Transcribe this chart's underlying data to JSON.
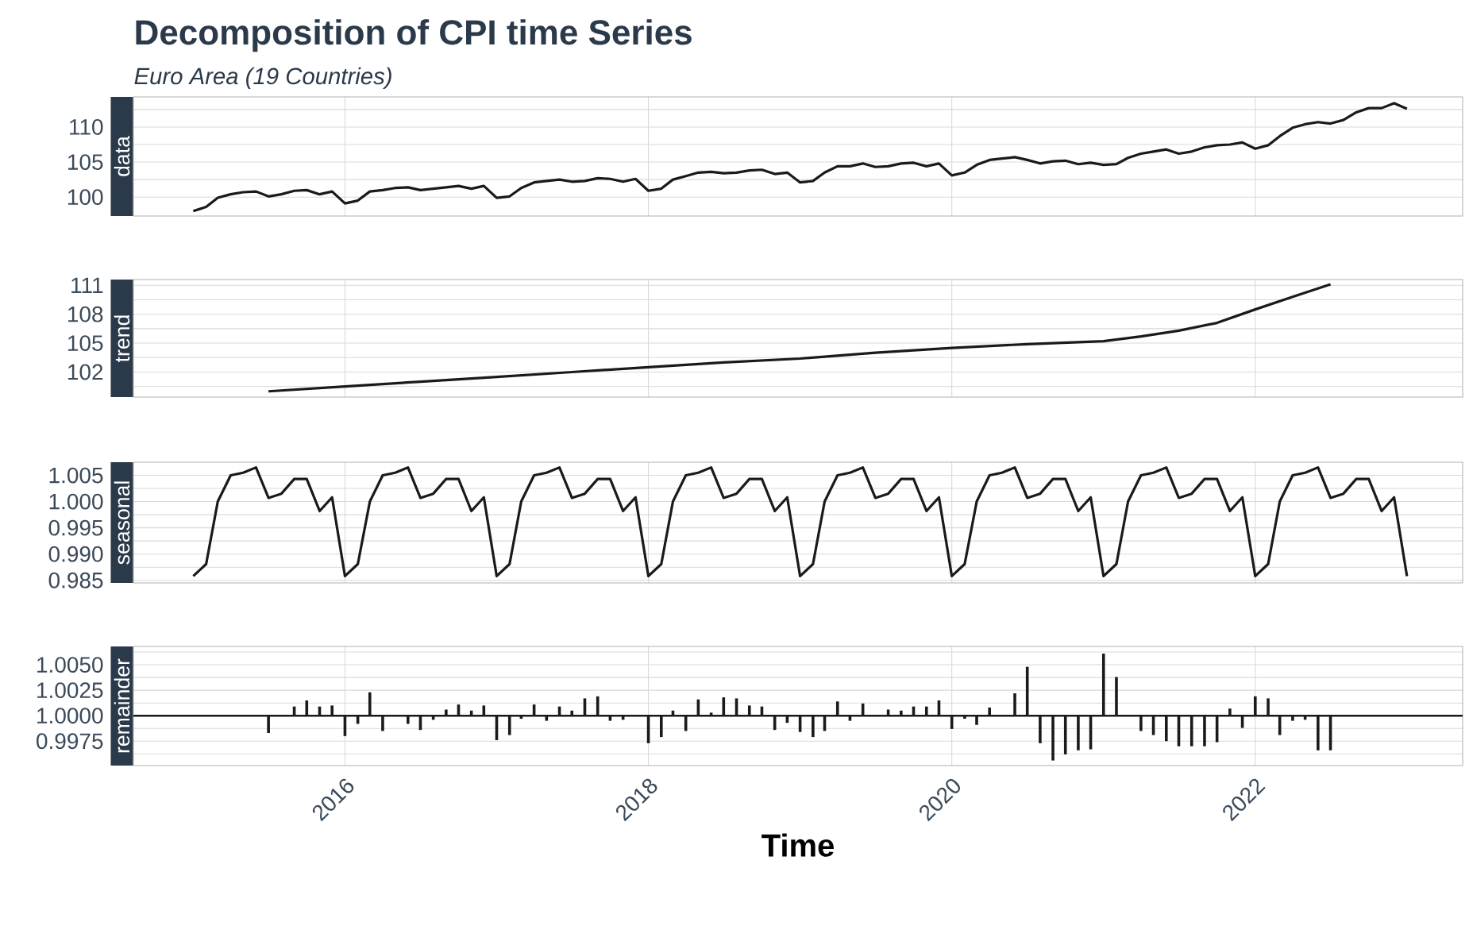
{
  "chart_data": [
    {
      "type": "line",
      "title": "Decomposition of CPI time Series",
      "subtitle": "Euro Area (19 Countries)",
      "ylabel": "data",
      "color": "#1a1a1a",
      "x": [
        "2015-01",
        "2015-02",
        "2015-03",
        "2015-04",
        "2015-05",
        "2015-06",
        "2015-07",
        "2015-08",
        "2015-09",
        "2015-10",
        "2015-11",
        "2015-12",
        "2016-01",
        "2016-02",
        "2016-03",
        "2016-04",
        "2016-05",
        "2016-06",
        "2016-07",
        "2016-08",
        "2016-09",
        "2016-10",
        "2016-11",
        "2016-12",
        "2017-01",
        "2017-02",
        "2017-03",
        "2017-04",
        "2017-05",
        "2017-06",
        "2017-07",
        "2017-08",
        "2017-09",
        "2017-10",
        "2017-11",
        "2017-12",
        "2018-01",
        "2018-02",
        "2018-03",
        "2018-04",
        "2018-05",
        "2018-06",
        "2018-07",
        "2018-08",
        "2018-09",
        "2018-10",
        "2018-11",
        "2018-12",
        "2019-01",
        "2019-02",
        "2019-03",
        "2019-04",
        "2019-05",
        "2019-06",
        "2019-07",
        "2019-08",
        "2019-09",
        "2019-10",
        "2019-11",
        "2019-12",
        "2020-01",
        "2020-02",
        "2020-03",
        "2020-04",
        "2020-05",
        "2020-06",
        "2020-07",
        "2020-08",
        "2020-09",
        "2020-10",
        "2020-11",
        "2020-12",
        "2021-01",
        "2021-02",
        "2021-03",
        "2021-04",
        "2021-05",
        "2021-06",
        "2021-07",
        "2021-08",
        "2021-09",
        "2021-10",
        "2021-11",
        "2021-12",
        "2022-01",
        "2022-02",
        "2022-03",
        "2022-04",
        "2022-05",
        "2022-06",
        "2022-07",
        "2022-08",
        "2022-09",
        "2022-10",
        "2022-11",
        "2022-12",
        "2023-01"
      ],
      "values": [
        98.0,
        98.6,
        99.9,
        100.4,
        100.7,
        100.8,
        100.1,
        100.4,
        100.9,
        101.0,
        100.4,
        100.8,
        99.1,
        99.5,
        100.8,
        101.0,
        101.3,
        101.4,
        101.0,
        101.2,
        101.4,
        101.6,
        101.2,
        101.6,
        99.9,
        100.1,
        101.3,
        102.1,
        102.3,
        102.5,
        102.2,
        102.3,
        102.7,
        102.6,
        102.2,
        102.6,
        100.9,
        101.2,
        102.5,
        103.0,
        103.5,
        103.6,
        103.4,
        103.5,
        103.8,
        103.9,
        103.3,
        103.5,
        102.1,
        102.3,
        103.5,
        104.4,
        104.4,
        104.8,
        104.3,
        104.4,
        104.8,
        104.9,
        104.4,
        104.8,
        103.1,
        103.5,
        104.6,
        105.3,
        105.5,
        105.7,
        105.3,
        104.8,
        105.1,
        105.2,
        104.7,
        104.9,
        104.6,
        104.7,
        105.6,
        106.2,
        106.5,
        106.8,
        106.2,
        106.5,
        107.1,
        107.4,
        107.5,
        107.8,
        106.9,
        107.4,
        108.7,
        109.9,
        110.4,
        110.7,
        110.5,
        111.0,
        112.1,
        112.7,
        112.7,
        113.4,
        112.6
      ],
      "xlim": [
        "2014-08-10",
        "2023-05-15"
      ],
      "xticks": [
        {
          "value": "2016-01-01",
          "label": null
        },
        {
          "value": "2018-01-01",
          "label": null
        },
        {
          "value": "2020-01-01",
          "label": null
        },
        {
          "value": "2022-01-01",
          "label": null
        }
      ],
      "ylim": [
        97.3,
        114.3
      ],
      "yticks": [
        100,
        {
          "value": 102.5,
          "label": null
        },
        105,
        {
          "value": 107.5,
          "label": null
        },
        110,
        {
          "value": 112.5,
          "label": null
        }
      ],
      "grid": true,
      "tick_labels": "y"
    },
    {
      "type": "line",
      "ylabel": "trend",
      "color": "#1a1a1a",
      "x": [
        "2015-07",
        "2016-01",
        "2016-07",
        "2017-01",
        "2017-07",
        "2018-01",
        "2018-07",
        "2019-01",
        "2019-07",
        "2020-01",
        "2020-07",
        "2021-01",
        "2021-04",
        "2021-07",
        "2021-10",
        "2022-01",
        "2022-04",
        "2022-07"
      ],
      "values": [
        100.0,
        100.5,
        101.0,
        101.5,
        102.0,
        102.5,
        103.0,
        103.4,
        104.0,
        104.5,
        104.9,
        105.2,
        105.7,
        106.3,
        107.1,
        108.5,
        109.8,
        111.1
      ],
      "xlim": [
        "2014-08-10",
        "2023-05-15"
      ],
      "xticks": [
        {
          "value": "2016-01-01",
          "label": null
        },
        {
          "value": "2018-01-01",
          "label": null
        },
        {
          "value": "2020-01-01",
          "label": null
        },
        {
          "value": "2022-01-01",
          "label": null
        }
      ],
      "ylim": [
        99.4,
        111.6
      ],
      "yticks": [
        {
          "value": 100.5,
          "label": null
        },
        102,
        {
          "value": 103.5,
          "label": null
        },
        105,
        {
          "value": 106.5,
          "label": null
        },
        108,
        {
          "value": 109.5,
          "label": null
        },
        111
      ],
      "grid": true,
      "tick_labels": "y"
    },
    {
      "type": "line",
      "ylabel": "seasonal",
      "color": "#1a1a1a",
      "x": [
        "2015-01",
        "2015-02",
        "2015-03",
        "2015-04",
        "2015-05",
        "2015-06",
        "2015-07",
        "2015-08",
        "2015-09",
        "2015-10",
        "2015-11",
        "2015-12",
        "2016-01",
        "2016-02",
        "2016-03",
        "2016-04",
        "2016-05",
        "2016-06",
        "2016-07",
        "2016-08",
        "2016-09",
        "2016-10",
        "2016-11",
        "2016-12",
        "2017-01",
        "2017-02",
        "2017-03",
        "2017-04",
        "2017-05",
        "2017-06",
        "2017-07",
        "2017-08",
        "2017-09",
        "2017-10",
        "2017-11",
        "2017-12",
        "2018-01",
        "2018-02",
        "2018-03",
        "2018-04",
        "2018-05",
        "2018-06",
        "2018-07",
        "2018-08",
        "2018-09",
        "2018-10",
        "2018-11",
        "2018-12",
        "2019-01",
        "2019-02",
        "2019-03",
        "2019-04",
        "2019-05",
        "2019-06",
        "2019-07",
        "2019-08",
        "2019-09",
        "2019-10",
        "2019-11",
        "2019-12",
        "2020-01",
        "2020-02",
        "2020-03",
        "2020-04",
        "2020-05",
        "2020-06",
        "2020-07",
        "2020-08",
        "2020-09",
        "2020-10",
        "2020-11",
        "2020-12",
        "2021-01",
        "2021-02",
        "2021-03",
        "2021-04",
        "2021-05",
        "2021-06",
        "2021-07",
        "2021-08",
        "2021-09",
        "2021-10",
        "2021-11",
        "2021-12",
        "2022-01",
        "2022-02",
        "2022-03",
        "2022-04",
        "2022-05",
        "2022-06",
        "2022-07",
        "2022-08",
        "2022-09",
        "2022-10",
        "2022-11",
        "2022-12",
        "2023-01"
      ],
      "values": [
        0.9858,
        0.9881,
        1.0,
        1.005,
        1.0055,
        1.0065,
        1.0007,
        1.0015,
        1.0043,
        1.0043,
        0.9982,
        1.0008,
        0.9858,
        0.9881,
        1.0,
        1.005,
        1.0055,
        1.0065,
        1.0007,
        1.0015,
        1.0043,
        1.0043,
        0.9982,
        1.0008,
        0.9858,
        0.9881,
        1.0,
        1.005,
        1.0055,
        1.0065,
        1.0007,
        1.0015,
        1.0043,
        1.0043,
        0.9982,
        1.0008,
        0.9858,
        0.9881,
        1.0,
        1.005,
        1.0055,
        1.0065,
        1.0007,
        1.0015,
        1.0043,
        1.0043,
        0.9982,
        1.0008,
        0.9858,
        0.9881,
        1.0,
        1.005,
        1.0055,
        1.0065,
        1.0007,
        1.0015,
        1.0043,
        1.0043,
        0.9982,
        1.0008,
        0.9858,
        0.9881,
        1.0,
        1.005,
        1.0055,
        1.0065,
        1.0007,
        1.0015,
        1.0043,
        1.0043,
        0.9982,
        1.0008,
        0.9858,
        0.9881,
        1.0,
        1.005,
        1.0055,
        1.0065,
        1.0007,
        1.0015,
        1.0043,
        1.0043,
        0.9982,
        1.0008,
        0.9858,
        0.9881,
        1.0,
        1.005,
        1.0055,
        1.0065,
        1.0007,
        1.0015,
        1.0043,
        1.0043,
        0.9982,
        1.0008,
        0.9858
      ],
      "xlim": [
        "2014-08-10",
        "2023-05-15"
      ],
      "xticks": [
        {
          "value": "2016-01-01",
          "label": null
        },
        {
          "value": "2018-01-01",
          "label": null
        },
        {
          "value": "2020-01-01",
          "label": null
        },
        {
          "value": "2022-01-01",
          "label": null
        }
      ],
      "ylim": [
        0.9845,
        1.0075
      ],
      "yticks": [
        {
          "value": 0.985,
          "label": "0.985"
        },
        {
          "value": 0.9875,
          "label": null
        },
        {
          "value": 0.99,
          "label": "0.990"
        },
        {
          "value": 0.9925,
          "label": null
        },
        {
          "value": 0.995,
          "label": "0.995"
        },
        {
          "value": 0.9975,
          "label": null
        },
        {
          "value": 1.0,
          "label": "1.000"
        },
        {
          "value": 1.0025,
          "label": null
        },
        {
          "value": 1.005,
          "label": "1.005"
        }
      ],
      "grid": true,
      "tick_labels": "y"
    },
    {
      "type": "bar",
      "ylabel": "remainder",
      "xlabel": "Time",
      "color": "#1a1a1a",
      "x": [
        "2015-07",
        "2015-08",
        "2015-09",
        "2015-10",
        "2015-11",
        "2015-12",
        "2016-01",
        "2016-02",
        "2016-03",
        "2016-04",
        "2016-05",
        "2016-06",
        "2016-07",
        "2016-08",
        "2016-09",
        "2016-10",
        "2016-11",
        "2016-12",
        "2017-01",
        "2017-02",
        "2017-03",
        "2017-04",
        "2017-05",
        "2017-06",
        "2017-07",
        "2017-08",
        "2017-09",
        "2017-10",
        "2017-11",
        "2017-12",
        "2018-01",
        "2018-02",
        "2018-03",
        "2018-04",
        "2018-05",
        "2018-06",
        "2018-07",
        "2018-08",
        "2018-09",
        "2018-10",
        "2018-11",
        "2018-12",
        "2019-01",
        "2019-02",
        "2019-03",
        "2019-04",
        "2019-05",
        "2019-06",
        "2019-07",
        "2019-08",
        "2019-09",
        "2019-10",
        "2019-11",
        "2019-12",
        "2020-01",
        "2020-02",
        "2020-03",
        "2020-04",
        "2020-05",
        "2020-06",
        "2020-07",
        "2020-08",
        "2020-09",
        "2020-10",
        "2020-11",
        "2020-12",
        "2021-01",
        "2021-02",
        "2021-03",
        "2021-04",
        "2021-05",
        "2021-06",
        "2021-07",
        "2021-08",
        "2021-09",
        "2021-10",
        "2021-11",
        "2021-12",
        "2022-01",
        "2022-02",
        "2022-03",
        "2022-04",
        "2022-05",
        "2022-06",
        "2022-07"
      ],
      "base": [
        1,
        null,
        1,
        1,
        1,
        1,
        1,
        1,
        1,
        1,
        null,
        1,
        1,
        1,
        1,
        1,
        1,
        1,
        1,
        1,
        1,
        1,
        1,
        1,
        1,
        1,
        1,
        1,
        1,
        null,
        1,
        1,
        1,
        1,
        1,
        1,
        1,
        1,
        1,
        1,
        1,
        1,
        1,
        1,
        1,
        1,
        1,
        1,
        null,
        1,
        1,
        1,
        1,
        1,
        1,
        1,
        1,
        1,
        null,
        1,
        1,
        1,
        1,
        1,
        1,
        1,
        1,
        1,
        null,
        1,
        1,
        1,
        1,
        1,
        1,
        1,
        1,
        1,
        1,
        1,
        1,
        1,
        1,
        1,
        1
      ],
      "values": [
        -0.0017,
        null,
        0.0009,
        0.0015,
        0.0009,
        0.001,
        -0.002,
        -0.0008,
        0.0023,
        -0.0015,
        null,
        -0.0008,
        -0.0014,
        -0.0004,
        0.0006,
        0.0011,
        0.0005,
        0.001,
        -0.0024,
        -0.0019,
        -0.0003,
        0.0011,
        -0.0005,
        0.0009,
        0.0005,
        0.0017,
        0.0019,
        -0.0005,
        -0.0004,
        null,
        -0.0027,
        -0.0021,
        0.0005,
        -0.0015,
        0.0016,
        0.0003,
        0.0018,
        0.0017,
        0.001,
        0.0009,
        -0.0014,
        -0.0007,
        -0.0016,
        -0.0021,
        -0.0015,
        0.0014,
        -0.0005,
        0.0012,
        null,
        0.0006,
        0.0005,
        0.0009,
        0.0009,
        0.0015,
        -0.0013,
        -0.0003,
        -0.0009,
        0.0008,
        null,
        0.0022,
        0.0048,
        -0.0027,
        -0.0044,
        -0.0038,
        -0.0034,
        -0.0033,
        0.0061,
        0.0038,
        null,
        -0.0015,
        -0.0019,
        -0.0025,
        -0.003,
        -0.003,
        -0.003,
        -0.0026,
        0.0007,
        -0.0012,
        0.0019,
        0.0017,
        -0.0019,
        -0.0005,
        -0.0004,
        -0.0034,
        -0.0034
      ],
      "ref_lines": [
        {
          "axis": "y",
          "value": 1.0,
          "color": "#1a1a1a"
        }
      ],
      "xlim": [
        "2014-08-10",
        "2023-05-15"
      ],
      "xticks": [
        {
          "value": "2016-01-01",
          "label": "2016"
        },
        {
          "value": "2018-01-01",
          "label": "2018"
        },
        {
          "value": "2020-01-01",
          "label": "2020"
        },
        {
          "value": "2022-01-01",
          "label": "2022"
        }
      ],
      "ylim": [
        0.9951,
        1.0068
      ],
      "yticks": [
        {
          "value": 0.99625,
          "label": null
        },
        {
          "value": 0.9975,
          "label": "0.9975"
        },
        {
          "value": 0.99875,
          "label": null
        },
        {
          "value": 1.0,
          "label": "1.0000"
        },
        {
          "value": 1.00125,
          "label": null
        },
        {
          "value": 1.0025,
          "label": "1.0025"
        },
        {
          "value": 1.00375,
          "label": null
        },
        {
          "value": 1.005,
          "label": "1.0050"
        },
        {
          "value": 1.00625,
          "label": null
        }
      ],
      "grid": true
    }
  ]
}
